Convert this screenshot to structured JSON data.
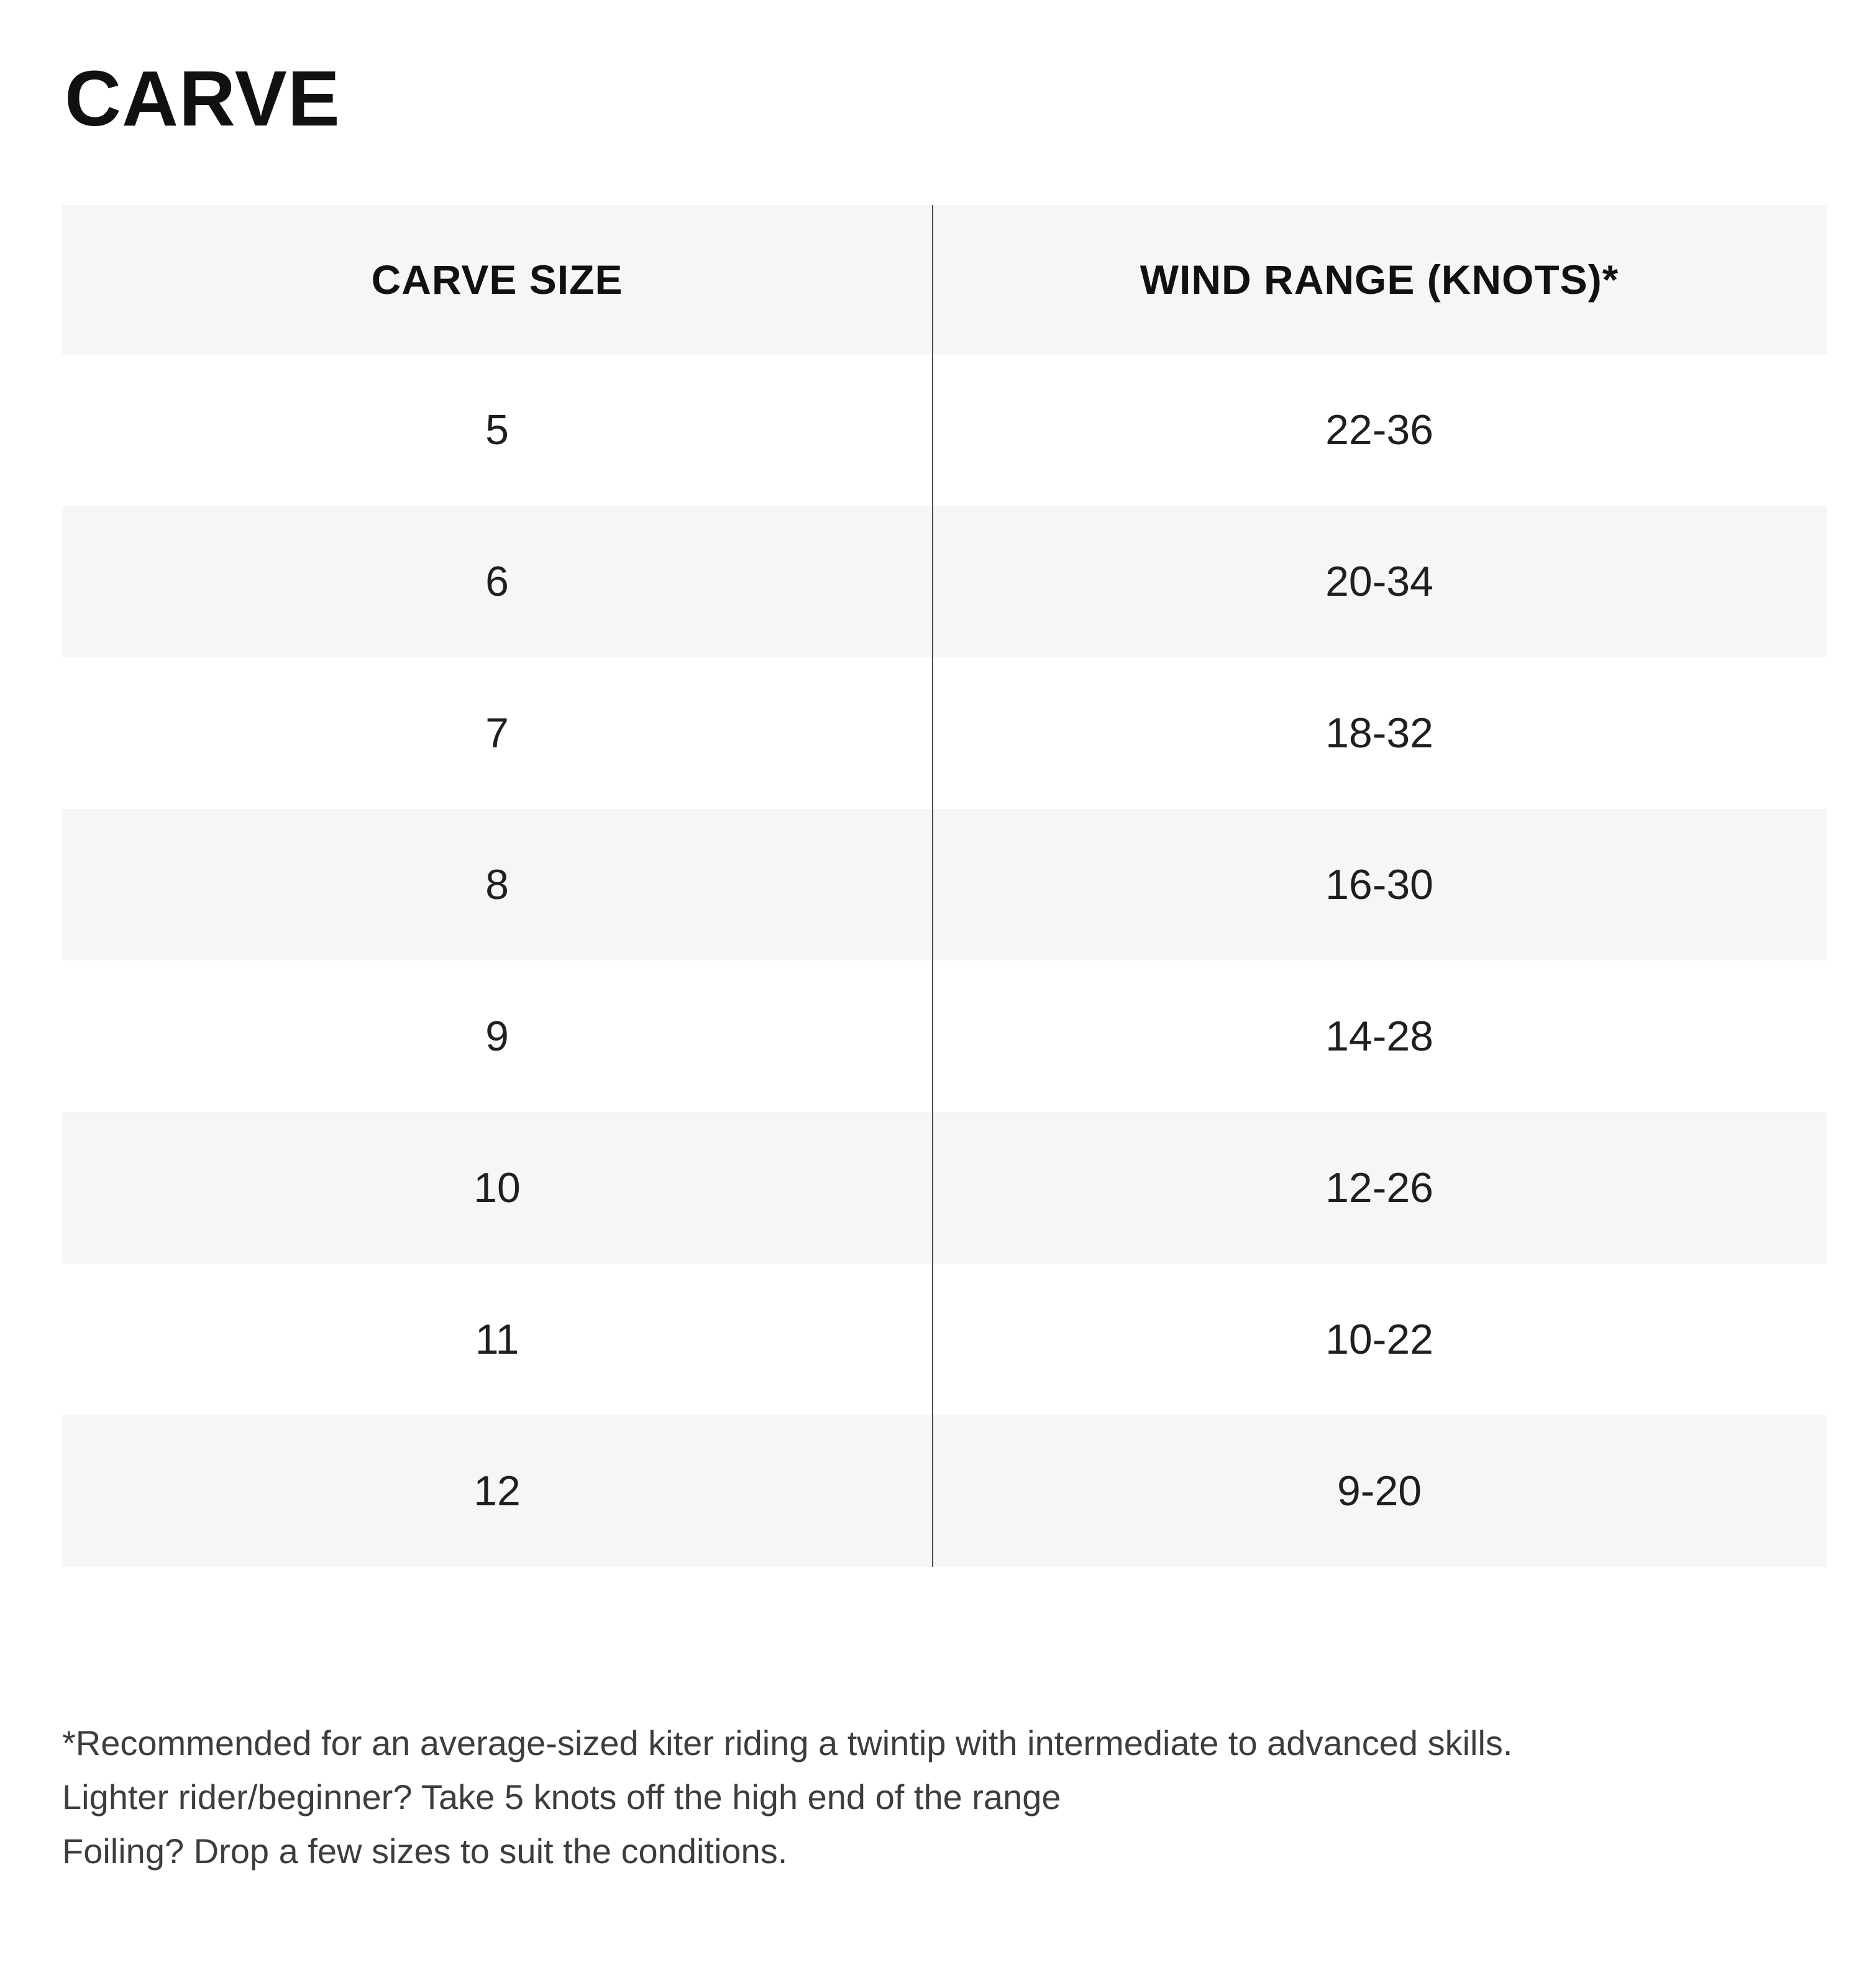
{
  "page": {
    "title": "CARVE",
    "background_color": "#ffffff"
  },
  "table": {
    "columns": [
      {
        "label": "CARVE SIZE"
      },
      {
        "label": "WIND RANGE (KNOTS)*"
      }
    ],
    "rows": [
      {
        "size": "5",
        "wind_range": "22-36"
      },
      {
        "size": "6",
        "wind_range": "20-34"
      },
      {
        "size": "7",
        "wind_range": "18-32"
      },
      {
        "size": "8",
        "wind_range": "16-30"
      },
      {
        "size": "9",
        "wind_range": "14-28"
      },
      {
        "size": "10",
        "wind_range": "12-26"
      },
      {
        "size": "11",
        "wind_range": "10-22"
      },
      {
        "size": "12",
        "wind_range": "9-20"
      }
    ],
    "colors": {
      "header_bg": "#f6f6f6",
      "shaded_row_bg": "#f6f6f6",
      "plain_row_bg": "#ffffff",
      "divider": "#4d4d4d",
      "header_text": "#111111",
      "cell_text": "#1f1f1f"
    }
  },
  "footnotes": {
    "lines": [
      "*Recommended for an average-sized kiter riding a twintip with intermediate to advanced skills.",
      "Lighter rider/beginner? Take 5 knots off the high end of the range",
      "Foiling? Drop a few sizes to suit the conditions."
    ],
    "text_color": "#3d3d3d"
  }
}
